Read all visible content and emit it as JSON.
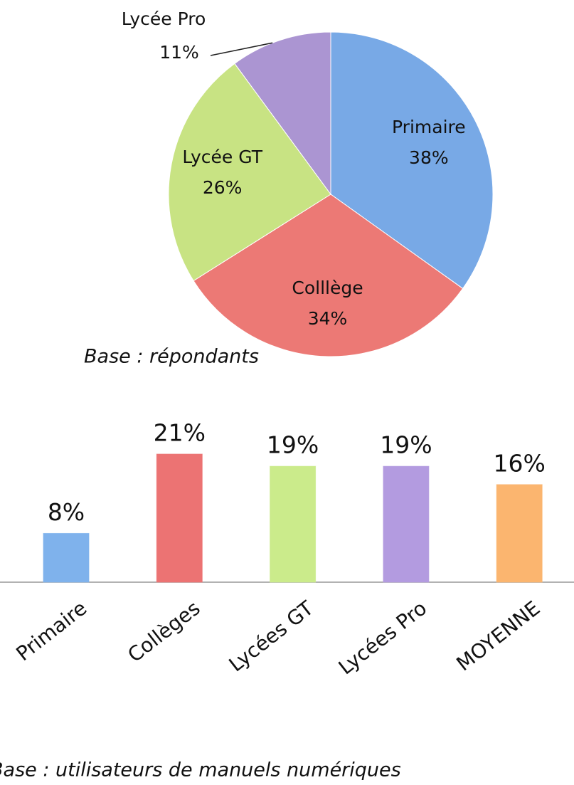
{
  "chart_data": [
    {
      "type": "pie",
      "categories": [
        "Primaire",
        "Colllège",
        "Lycée GT",
        "Lycée Pro"
      ],
      "values": [
        38,
        34,
        26,
        11
      ],
      "value_labels": [
        "38%",
        "34%",
        "26%",
        "11%"
      ],
      "colors": [
        "#78a9e6",
        "#ec7975",
        "#c8e383",
        "#ab95d2"
      ],
      "note": "Base : répondants"
    },
    {
      "type": "bar",
      "categories": [
        "Primaire",
        "Collèges",
        "Lycées GT",
        "Lycées Pro",
        "MOYENNE"
      ],
      "values": [
        8,
        21,
        19,
        19,
        16
      ],
      "value_labels": [
        "8%",
        "21%",
        "19%",
        "19%",
        "16%"
      ],
      "colors": [
        "#7fb2ec",
        "#ec7373",
        "#cbeb8b",
        "#b39be0",
        "#fbb56f"
      ],
      "note": "Base : utilisateurs de manuels numériques"
    }
  ]
}
